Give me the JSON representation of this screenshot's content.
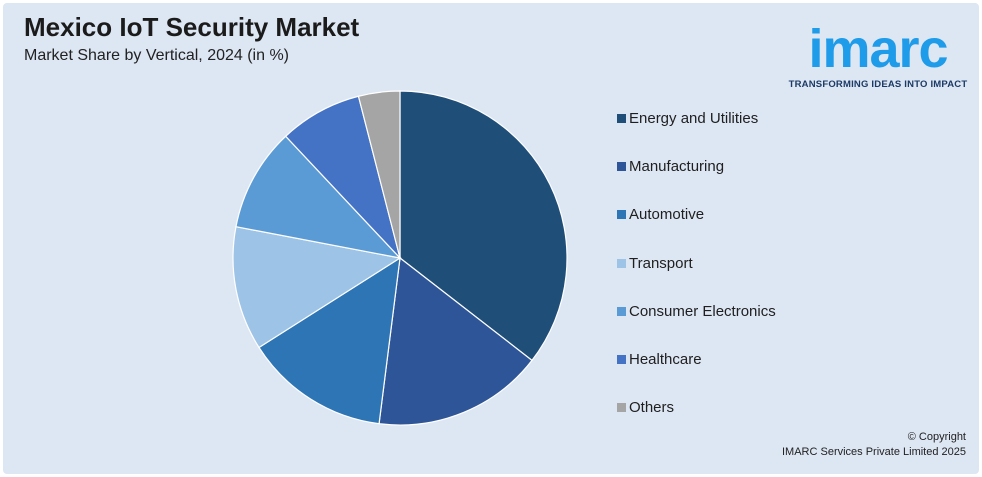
{
  "header": {
    "title": "Mexico IoT Security Market",
    "subtitle": "Market Share by Vertical, 2024 (in %)"
  },
  "logo": {
    "brand": "imarc",
    "tagline": "TRANSFORMING IDEAS INTO IMPACT",
    "color": "#1e9be9"
  },
  "chart_data": {
    "type": "pie",
    "title": "Mexico IoT Security Market",
    "subtitle": "Market Share by Vertical, 2024 (in %)",
    "legend_position": "right",
    "start_angle_deg": 0,
    "direction": "clockwise",
    "slices": [
      {
        "label": "Energy and Utilities",
        "value": 35.5,
        "color": "#1f4e79"
      },
      {
        "label": "Manufacturing",
        "value": 16.5,
        "color": "#2e5597"
      },
      {
        "label": "Automotive",
        "value": 14.0,
        "color": "#2e75b6"
      },
      {
        "label": "Transport",
        "value": 12.0,
        "color": "#9dc3e6"
      },
      {
        "label": "Consumer Electronics",
        "value": 10.0,
        "color": "#5b9bd5"
      },
      {
        "label": "Healthcare",
        "value": 8.0,
        "color": "#4472c4"
      },
      {
        "label": "Others",
        "value": 4.0,
        "color": "#a5a5a5"
      }
    ]
  },
  "footer": {
    "copyright_line1": "© Copyright",
    "copyright_line2": "IMARC Services Private Limited 2025"
  }
}
